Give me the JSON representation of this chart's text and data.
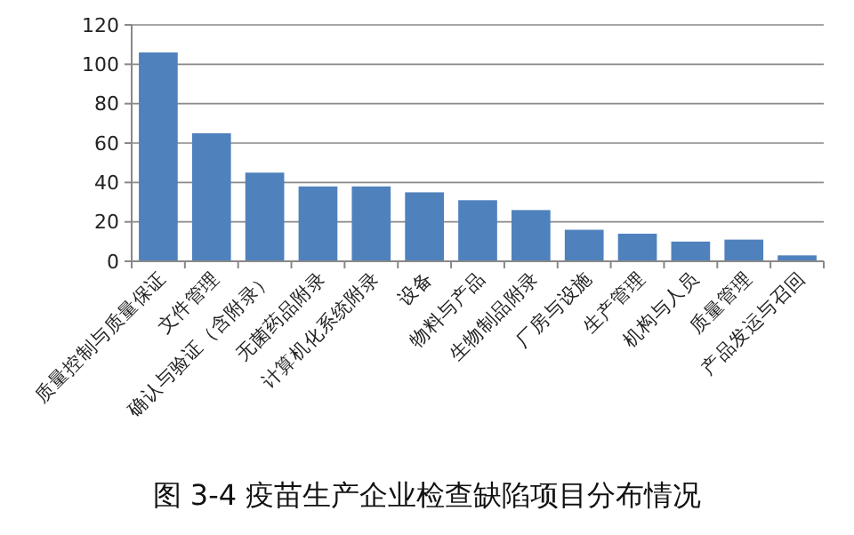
{
  "chart_data": {
    "type": "bar",
    "title": "图 3-4  疫苗生产企业检查缺陷项目分布情况",
    "categories": [
      "质量控制与质量保证",
      "文件管理",
      "确认与验证（含附录）",
      "无菌药品附录",
      "计算机化系统附录",
      "设备",
      "物料与产品",
      "生物制品附录",
      "厂房与设施",
      "生产管理",
      "机构与人员",
      "质量管理",
      "产品发运与召回"
    ],
    "values": [
      106,
      65,
      45,
      38,
      38,
      35,
      31,
      26,
      16,
      14,
      10,
      11,
      3
    ],
    "color": "#4f81bd",
    "ylim": [
      0,
      120
    ],
    "yticks": [
      0,
      20,
      40,
      60,
      80,
      100,
      120
    ],
    "grid": "y"
  }
}
